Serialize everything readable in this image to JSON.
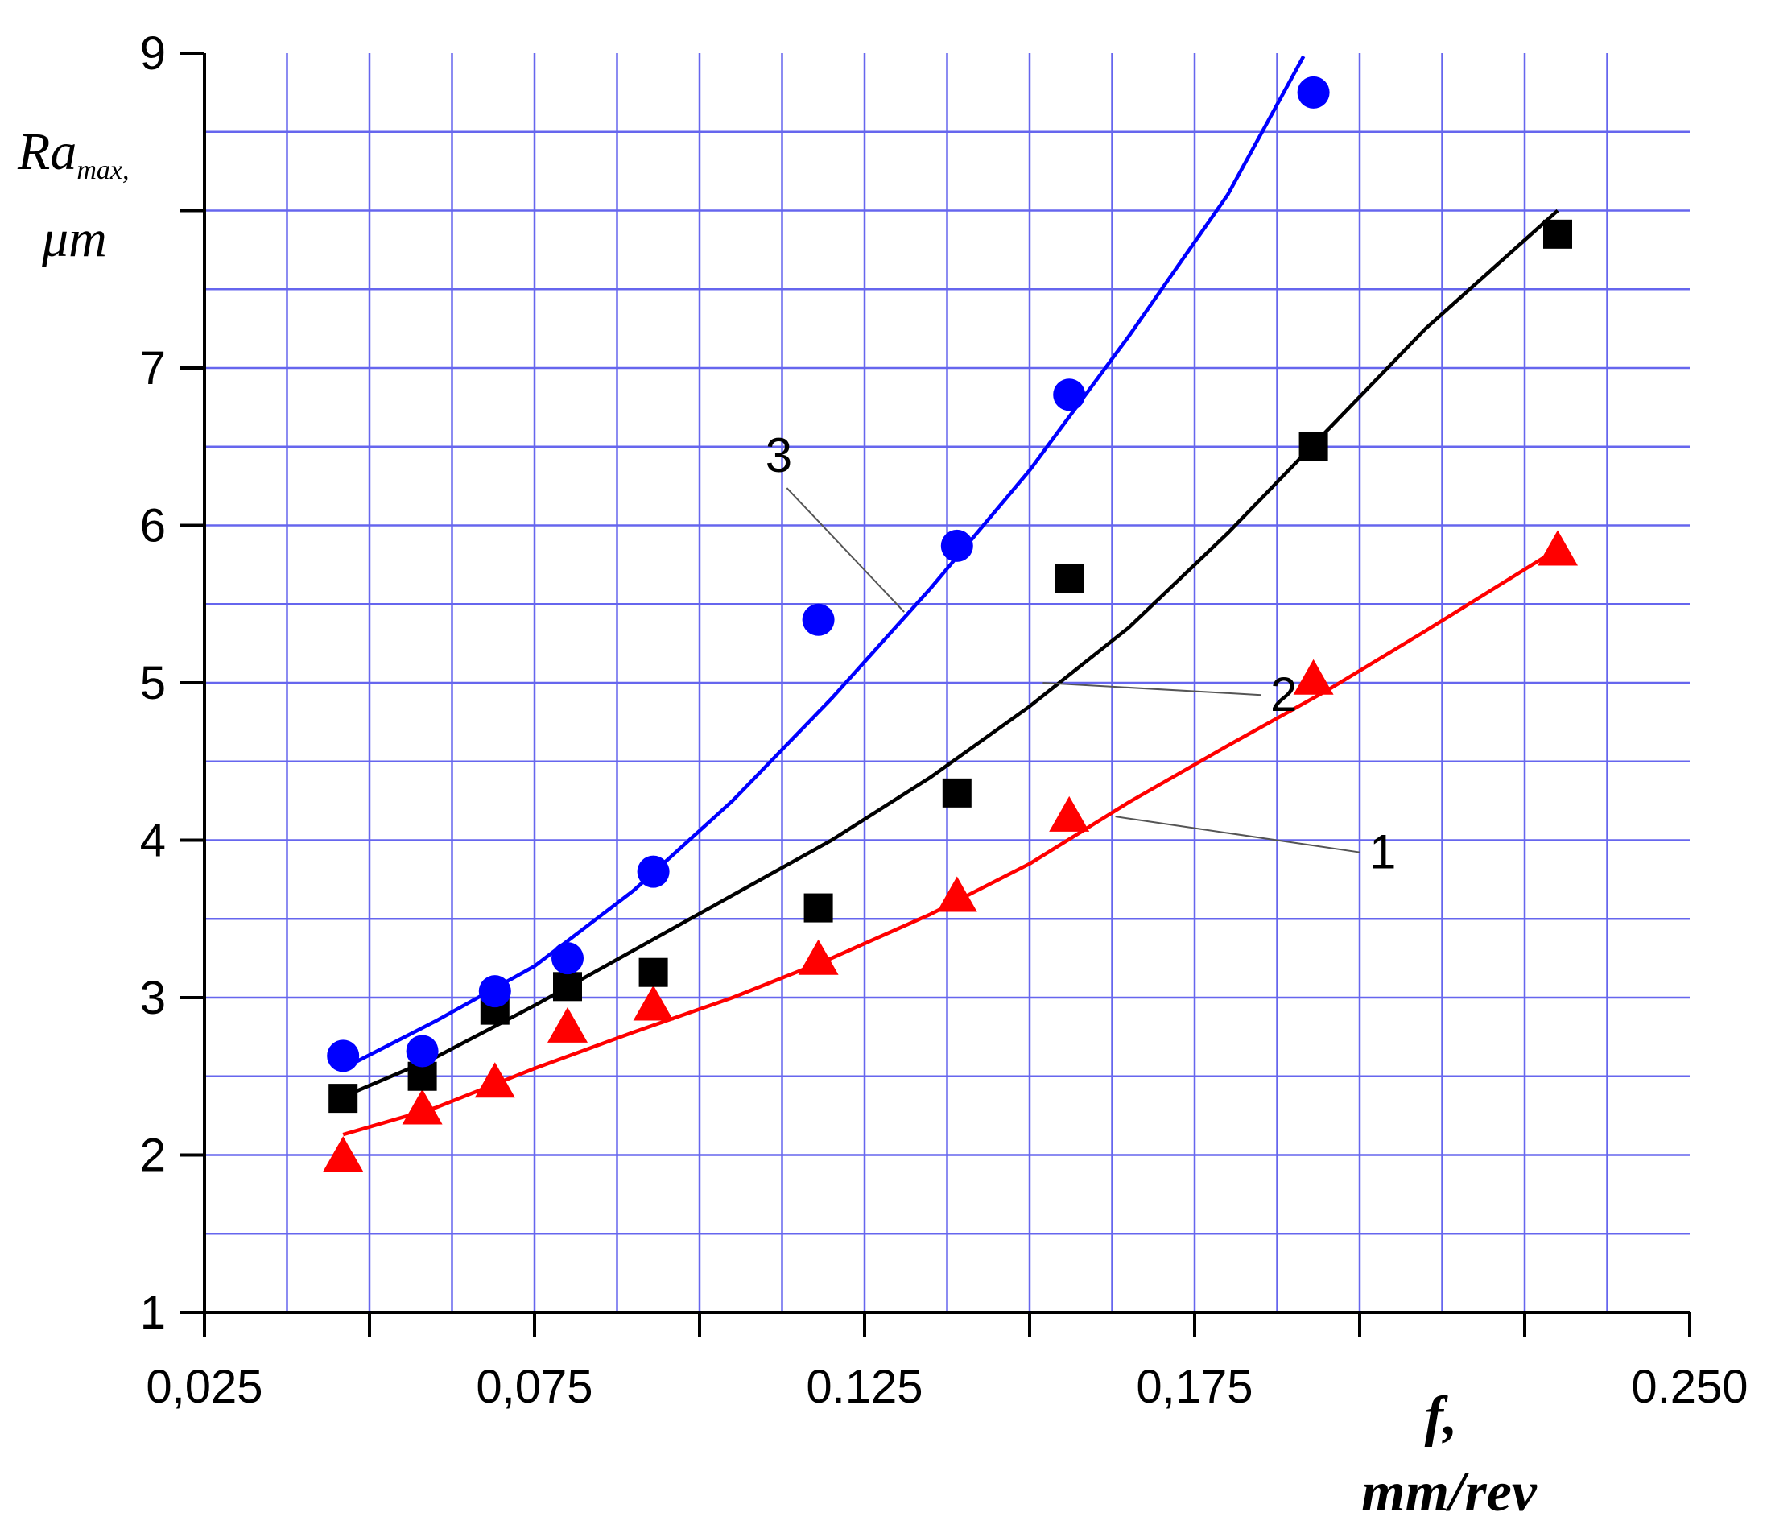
{
  "chart_data": {
    "type": "scatter",
    "ylabel": {
      "main": "Ra",
      "sub": "max,",
      "unit": "μm"
    },
    "xlabel": {
      "line1": "f,",
      "line2": "mm/rev"
    },
    "xlim": [
      0.025,
      0.25
    ],
    "ylim": [
      1,
      9
    ],
    "x_ticks": [
      {
        "value": 0.025,
        "label": "0,025"
      },
      {
        "value": 0.075,
        "label": "0,075"
      },
      {
        "value": 0.125,
        "label": "0.125"
      },
      {
        "value": 0.175,
        "label": "0,175"
      },
      {
        "value": 0.25,
        "label": "0.250"
      }
    ],
    "y_ticks": [
      {
        "value": 1,
        "label": "1"
      },
      {
        "value": 2,
        "label": "2"
      },
      {
        "value": 3,
        "label": "3"
      },
      {
        "value": 4,
        "label": "4"
      },
      {
        "value": 5,
        "label": "5"
      },
      {
        "value": 6,
        "label": "6"
      },
      {
        "value": 7,
        "label": "7"
      },
      {
        "value": 9,
        "label": "9"
      }
    ],
    "grid": true,
    "series": [
      {
        "label": "1",
        "marker": "triangle",
        "color": "#ff0000",
        "points": [
          {
            "x": 0.046,
            "y": 1.98
          },
          {
            "x": 0.058,
            "y": 2.28
          },
          {
            "x": 0.069,
            "y": 2.45
          },
          {
            "x": 0.08,
            "y": 2.8
          },
          {
            "x": 0.093,
            "y": 2.94
          },
          {
            "x": 0.118,
            "y": 3.23
          },
          {
            "x": 0.139,
            "y": 3.63
          },
          {
            "x": 0.156,
            "y": 4.14
          },
          {
            "x": 0.193,
            "y": 5.01
          },
          {
            "x": 0.23,
            "y": 5.83
          }
        ],
        "fit": [
          {
            "x": 0.046,
            "y": 2.13
          },
          {
            "x": 0.06,
            "y": 2.3
          },
          {
            "x": 0.075,
            "y": 2.55
          },
          {
            "x": 0.09,
            "y": 2.78
          },
          {
            "x": 0.105,
            "y": 3.0
          },
          {
            "x": 0.12,
            "y": 3.25
          },
          {
            "x": 0.135,
            "y": 3.53
          },
          {
            "x": 0.15,
            "y": 3.85
          },
          {
            "x": 0.165,
            "y": 4.24
          },
          {
            "x": 0.18,
            "y": 4.6
          },
          {
            "x": 0.195,
            "y": 4.95
          },
          {
            "x": 0.21,
            "y": 5.33
          },
          {
            "x": 0.23,
            "y": 5.85
          }
        ]
      },
      {
        "label": "2",
        "marker": "square",
        "color": "#000000",
        "points": [
          {
            "x": 0.046,
            "y": 2.36
          },
          {
            "x": 0.058,
            "y": 2.5
          },
          {
            "x": 0.069,
            "y": 2.92
          },
          {
            "x": 0.08,
            "y": 3.07
          },
          {
            "x": 0.093,
            "y": 3.16
          },
          {
            "x": 0.118,
            "y": 3.57
          },
          {
            "x": 0.139,
            "y": 4.3
          },
          {
            "x": 0.156,
            "y": 5.66
          },
          {
            "x": 0.193,
            "y": 6.5
          },
          {
            "x": 0.23,
            "y": 7.85
          }
        ],
        "fit": [
          {
            "x": 0.046,
            "y": 2.37
          },
          {
            "x": 0.06,
            "y": 2.62
          },
          {
            "x": 0.075,
            "y": 2.95
          },
          {
            "x": 0.09,
            "y": 3.3
          },
          {
            "x": 0.105,
            "y": 3.65
          },
          {
            "x": 0.12,
            "y": 4.0
          },
          {
            "x": 0.135,
            "y": 4.4
          },
          {
            "x": 0.15,
            "y": 4.85
          },
          {
            "x": 0.165,
            "y": 5.35
          },
          {
            "x": 0.18,
            "y": 5.95
          },
          {
            "x": 0.195,
            "y": 6.6
          },
          {
            "x": 0.21,
            "y": 7.25
          },
          {
            "x": 0.23,
            "y": 8.0
          }
        ]
      },
      {
        "label": "3",
        "marker": "circle",
        "color": "#0000ff",
        "points": [
          {
            "x": 0.046,
            "y": 2.63
          },
          {
            "x": 0.058,
            "y": 2.66
          },
          {
            "x": 0.069,
            "y": 3.04
          },
          {
            "x": 0.08,
            "y": 3.25
          },
          {
            "x": 0.093,
            "y": 3.8
          },
          {
            "x": 0.118,
            "y": 5.4
          },
          {
            "x": 0.139,
            "y": 5.87
          },
          {
            "x": 0.156,
            "y": 6.83
          },
          {
            "x": 0.193,
            "y": 8.75
          }
        ],
        "fit": [
          {
            "x": 0.046,
            "y": 2.55
          },
          {
            "x": 0.06,
            "y": 2.85
          },
          {
            "x": 0.075,
            "y": 3.2
          },
          {
            "x": 0.09,
            "y": 3.68
          },
          {
            "x": 0.105,
            "y": 4.25
          },
          {
            "x": 0.12,
            "y": 4.9
          },
          {
            "x": 0.135,
            "y": 5.6
          },
          {
            "x": 0.15,
            "y": 6.35
          },
          {
            "x": 0.165,
            "y": 7.2
          },
          {
            "x": 0.18,
            "y": 8.1
          },
          {
            "x": 0.1915,
            "y": 8.98
          }
        ]
      }
    ],
    "curve_labels": [
      {
        "text": "1",
        "label_at": {
          "x": 0.2035,
          "y": 3.82
        },
        "leader_to": {
          "x": 0.163,
          "y": 4.15
        }
      },
      {
        "text": "2",
        "label_at": {
          "x": 0.1885,
          "y": 4.82
        },
        "leader_to": {
          "x": 0.152,
          "y": 5.0
        }
      },
      {
        "text": "3",
        "label_at": {
          "x": 0.112,
          "y": 6.34
        },
        "leader_to": {
          "x": 0.131,
          "y": 5.45
        }
      }
    ]
  }
}
